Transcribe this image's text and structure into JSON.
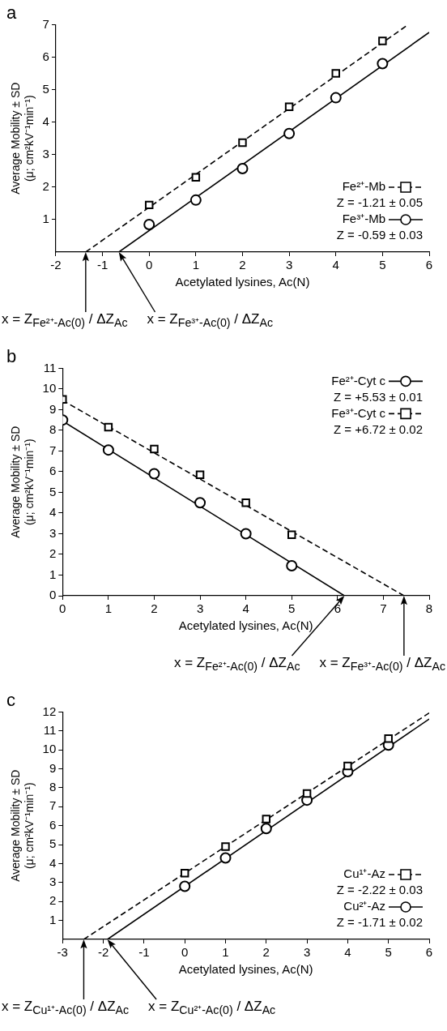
{
  "chart_data": [
    {
      "type": "scatter",
      "title": "a",
      "xlabel": "Acetylated lysines, Ac(N)",
      "ylabel": "Average Mobility ± SD\n(μ; cm²kV⁻¹min⁻¹)",
      "x": [
        0,
        1,
        2,
        3,
        4,
        5
      ],
      "xlim": [
        -2,
        6
      ],
      "xticks": [
        -2,
        -1,
        0,
        1,
        2,
        3,
        4,
        5,
        6
      ],
      "ylim": [
        0,
        7
      ],
      "yticks": [
        1,
        2,
        3,
        4,
        5,
        6,
        7
      ],
      "grid": false,
      "legend": "bottom right",
      "series": [
        {
          "name": "Fe²⁺-Mb",
          "type": "scatter",
          "marker": "square",
          "line_style": "dashed",
          "color": "#000000",
          "values": [
            1.45,
            2.3,
            3.37,
            4.47,
            5.5,
            6.5
          ]
        },
        {
          "type": "line",
          "marker": "none",
          "line_style": "dashed",
          "color": "#000000",
          "x": [
            -1.36,
            5.5
          ],
          "values": [
            0,
            6.95
          ]
        },
        {
          "name": "Fe³⁺-Mb",
          "type": "scatter",
          "marker": "circle",
          "line_style": "solid",
          "color": "#000000",
          "values": [
            0.85,
            1.6,
            2.57,
            3.65,
            4.75,
            5.8
          ]
        },
        {
          "type": "line",
          "marker": "none",
          "line_style": "solid",
          "color": "#000000",
          "x": [
            -0.65,
            6
          ],
          "values": [
            0,
            6.76
          ]
        }
      ],
      "annotations": [
        "Z = -1.21 ± 0.05",
        "Z = -0.59 ± 0.03",
        "x = Z$_{Fe²⁺-Ac(0)}$ / ΔZ$_{Ac}$",
        "x = Z$_{Fe³⁺-Ac(0)}$ / ΔZ$_{Ac}$"
      ]
    },
    {
      "type": "scatter",
      "title": "b",
      "xlabel": "Acetylated lysines, Ac(N)",
      "ylabel": "Average Mobility ± SD\n(μ; cm²kV⁻¹min⁻¹)",
      "x": [
        0,
        1,
        2,
        3,
        4,
        5
      ],
      "xlim": [
        0,
        8
      ],
      "xticks": [
        0,
        1,
        2,
        3,
        4,
        5,
        6,
        7,
        8
      ],
      "ylim": [
        0,
        11
      ],
      "yticks": [
        0,
        1,
        2,
        3,
        4,
        5,
        6,
        7,
        8,
        9,
        10,
        11
      ],
      "grid": false,
      "legend": "top right",
      "series": [
        {
          "name": "Fe²⁺-Cyt c",
          "type": "scatter",
          "marker": "circle",
          "line_style": "solid",
          "color": "#000000",
          "values": [
            8.5,
            7.05,
            5.9,
            4.5,
            3.0,
            1.45
          ]
        },
        {
          "type": "line",
          "marker": "none",
          "line_style": "solid",
          "color": "#000000",
          "x": [
            0,
            6.15
          ],
          "values": [
            8.45,
            0
          ]
        },
        {
          "name": "Fe³⁺-Cyt c",
          "type": "scatter",
          "marker": "square",
          "line_style": "dashed",
          "color": "#000000",
          "values": [
            9.5,
            8.15,
            7.1,
            5.85,
            4.5,
            2.95
          ]
        },
        {
          "type": "line",
          "marker": "none",
          "line_style": "dashed",
          "color": "#000000",
          "x": [
            0,
            7.45
          ],
          "values": [
            9.45,
            0
          ]
        }
      ],
      "annotations": [
        "Z = +5.53 ± 0.01",
        "Z = +6.72 ± 0.02",
        "x = Z$_{Fe²⁺-Ac(0)}$ / ΔZ$_{Ac}$",
        "x = Z$_{Fe³⁺-Ac(0)}$ / ΔZ$_{Ac}$"
      ]
    },
    {
      "type": "scatter",
      "title": "c",
      "xlabel": "Acetylated lysines, Ac(N)",
      "ylabel": "Average Mobility ± SD\n(μ; cm²kV⁻¹min⁻¹)",
      "x": [
        0,
        1,
        2,
        3,
        4,
        5
      ],
      "xlim": [
        -3,
        6
      ],
      "xticks": [
        -3,
        -2,
        -1,
        0,
        1,
        2,
        3,
        4,
        5,
        6
      ],
      "ylim": [
        0,
        12
      ],
      "yticks": [
        1,
        2,
        3,
        4,
        5,
        6,
        7,
        8,
        9,
        10,
        11,
        12
      ],
      "grid": false,
      "legend": "bottom right",
      "series": [
        {
          "name": "Cu¹⁺-Az",
          "type": "scatter",
          "marker": "square",
          "line_style": "dashed",
          "color": "#000000",
          "values": [
            3.5,
            4.9,
            6.35,
            7.7,
            9.15,
            10.6
          ]
        },
        {
          "type": "line",
          "marker": "none",
          "line_style": "dashed",
          "color": "#000000",
          "x": [
            -2.48,
            6
          ],
          "values": [
            0,
            11.95
          ]
        },
        {
          "name": "Cu²⁺-Az",
          "type": "scatter",
          "marker": "circle",
          "line_style": "solid",
          "color": "#000000",
          "values": [
            2.8,
            4.3,
            5.85,
            7.35,
            8.85,
            10.25
          ]
        },
        {
          "type": "line",
          "marker": "none",
          "line_style": "solid",
          "color": "#000000",
          "x": [
            -1.9,
            6
          ],
          "values": [
            0,
            11.63
          ]
        }
      ],
      "annotations": [
        "Z = -2.22 ± 0.03",
        "Z = -1.71 ± 0.02",
        "x = Z$_{Cu¹⁺-Ac(0)}$ / ΔZ$_{Ac}$",
        "x = Z$_{Cu²⁺-Ac(0)}$ / ΔZ$_{Ac}$"
      ]
    }
  ]
}
